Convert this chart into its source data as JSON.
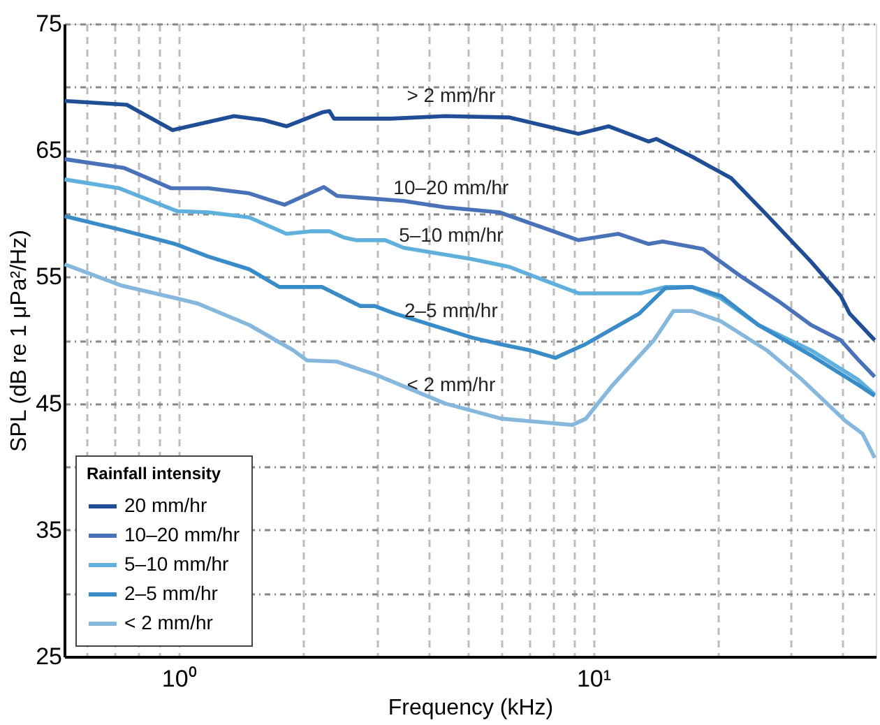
{
  "chart_data": {
    "type": "line",
    "xlabel": "Frequency (kHz)",
    "ylabel": "SPL (dB re 1 μPa²/Hz)",
    "legend_title": "Rainfall intensity",
    "log": "x",
    "xlim": [
      0.53,
      48
    ],
    "ylim": [
      25,
      75
    ],
    "xticks": [
      {
        "value": 0.6,
        "label": null
      },
      {
        "value": 0.7,
        "label": null
      },
      {
        "value": 0.8,
        "label": null
      },
      {
        "value": 0.9,
        "label": null
      },
      {
        "value": 1,
        "label": "10⁰"
      },
      {
        "value": 2,
        "label": null
      },
      {
        "value": 3,
        "label": null
      },
      {
        "value": 4,
        "label": null
      },
      {
        "value": 5,
        "label": null
      },
      {
        "value": 6,
        "label": null
      },
      {
        "value": 7,
        "label": null
      },
      {
        "value": 8,
        "label": null
      },
      {
        "value": 9,
        "label": null
      },
      {
        "value": 10,
        "label": "10¹"
      },
      {
        "value": 20,
        "label": null
      },
      {
        "value": 30,
        "label": null
      },
      {
        "value": 40,
        "label": null
      }
    ],
    "yticks": [
      25,
      {
        "value": 30,
        "label": null
      },
      35,
      {
        "value": 40,
        "label": null
      },
      45,
      {
        "value": 50,
        "label": null
      },
      55,
      {
        "value": 60,
        "label": null
      },
      65,
      {
        "value": 70,
        "label": null
      },
      75
    ],
    "grid": true,
    "legend": "bottom left",
    "line_style": "solid",
    "marker": "none",
    "series": [
      {
        "name": "20 mm/hr",
        "color": "#1f4e96",
        "x": [
          0.531,
          0.75,
          0.967,
          1.36,
          1.6,
          1.82,
          2.22,
          2.31,
          2.37,
          3.24,
          4.39,
          6.26,
          9.21,
          10.9,
          13.6,
          14.2,
          17.3,
          21.5,
          26.2,
          33.5,
          39.5,
          41.5,
          47.7
        ],
        "values": [
          68.9,
          68.6,
          66.6,
          67.7,
          67.4,
          66.9,
          68.0,
          68.1,
          67.5,
          67.5,
          67.7,
          67.6,
          66.3,
          66.9,
          65.7,
          65.9,
          64.5,
          62.8,
          59.9,
          56.2,
          53.5,
          52.1,
          50.0
        ]
      },
      {
        "name": "10–20 mm/hr",
        "color": "#4a72b8",
        "x": [
          0.531,
          0.74,
          0.96,
          1.18,
          1.48,
          1.8,
          2.24,
          2.41,
          3.49,
          4.39,
          5.94,
          9.21,
          11.5,
          13.6,
          14.7,
          18.4,
          22.8,
          27.9,
          33.5,
          39.5,
          43.4,
          47.7
        ],
        "values": [
          64.3,
          63.6,
          62.0,
          62.0,
          61.6,
          60.7,
          62.1,
          61.4,
          61.0,
          60.5,
          60.1,
          57.9,
          58.4,
          57.6,
          57.8,
          57.2,
          55.0,
          53.1,
          51.2,
          50.0,
          48.5,
          47.1
        ]
      },
      {
        "name": "5–10 mm/hr",
        "color": "#5fb0dc",
        "x": [
          0.531,
          0.72,
          0.99,
          1.18,
          1.48,
          1.82,
          2.08,
          2.31,
          2.51,
          2.68,
          3.15,
          3.49,
          5.1,
          6.26,
          9.21,
          13.0,
          14.9,
          17.3,
          20.3,
          25.0,
          33.5,
          43.4,
          47.7
        ],
        "values": [
          62.7,
          62.0,
          60.2,
          60.1,
          59.7,
          58.4,
          58.6,
          58.6,
          58.1,
          57.9,
          57.9,
          57.3,
          56.4,
          55.8,
          53.7,
          53.7,
          54.2,
          54.2,
          53.3,
          51.2,
          49.2,
          46.9,
          45.7
        ]
      },
      {
        "name": "2–5 mm/hr",
        "color": "#3a8cc8",
        "x": [
          0.531,
          0.73,
          0.98,
          1.18,
          1.48,
          1.75,
          2.22,
          2.74,
          2.97,
          3.32,
          5.1,
          5.94,
          7.03,
          8.1,
          9.6,
          12.9,
          14.9,
          17.3,
          20.3,
          25.0,
          33.5,
          43.4,
          47.7
        ],
        "values": [
          59.8,
          58.7,
          57.6,
          56.6,
          55.6,
          54.2,
          54.2,
          52.7,
          52.7,
          52.1,
          50.2,
          49.7,
          49.2,
          48.6,
          49.7,
          52.1,
          54.1,
          54.2,
          53.5,
          51.2,
          48.8,
          46.5,
          45.6
        ]
      },
      {
        "name": "< 2 mm/hr",
        "color": "#86b8de",
        "x": [
          0.531,
          0.73,
          0.99,
          1.11,
          1.48,
          1.89,
          2.04,
          2.41,
          2.97,
          4.39,
          6.0,
          8.9,
          9.6,
          11.1,
          14.0,
          15.6,
          17.3,
          20.3,
          26.2,
          31.8,
          40.6,
          44.6,
          47.7
        ],
        "values": [
          56.0,
          54.3,
          53.3,
          52.9,
          51.2,
          49.2,
          48.4,
          48.3,
          47.3,
          45.0,
          43.8,
          43.3,
          43.8,
          46.4,
          50.0,
          52.3,
          52.3,
          51.5,
          49.2,
          46.9,
          43.6,
          42.6,
          40.7
        ]
      }
    ],
    "annotations": [
      "> 2 mm/hr",
      "10–20 mm/hr",
      "5–10 mm/hr",
      "2–5 mm/hr",
      "< 2 mm/hr"
    ]
  }
}
